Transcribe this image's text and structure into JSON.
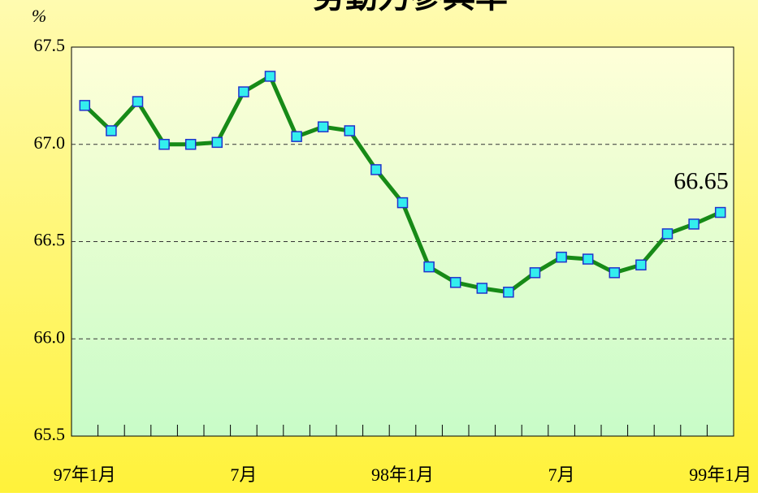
{
  "chart_data": {
    "type": "line",
    "title": "勞動力參與率",
    "y_label": "%",
    "categories": [
      "97年1月",
      null,
      null,
      null,
      null,
      null,
      "7月",
      null,
      null,
      null,
      null,
      null,
      "98年1月",
      null,
      null,
      null,
      null,
      null,
      "7月",
      null,
      null,
      null,
      null,
      null,
      "99年1月"
    ],
    "series": [
      {
        "name": "勞動力參與率",
        "color": "#178a17",
        "marker_color": "#33eeee",
        "values": [
          67.2,
          67.07,
          67.22,
          67.0,
          67.0,
          67.01,
          67.27,
          67.35,
          67.04,
          67.09,
          67.07,
          66.87,
          66.7,
          66.37,
          66.29,
          66.26,
          66.24,
          66.34,
          66.42,
          66.41,
          66.34,
          66.38,
          66.54,
          66.59,
          66.65
        ]
      }
    ],
    "ylim": [
      65.5,
      67.5
    ],
    "yticks": [
      {
        "value": 65.5,
        "label": "65.5"
      },
      {
        "value": 66,
        "label": "66.0"
      },
      {
        "value": 66.5,
        "label": "66.5"
      },
      {
        "value": 67,
        "label": "67.0"
      },
      {
        "value": 67.5,
        "label": "67.5"
      }
    ],
    "grid": true
  }
}
